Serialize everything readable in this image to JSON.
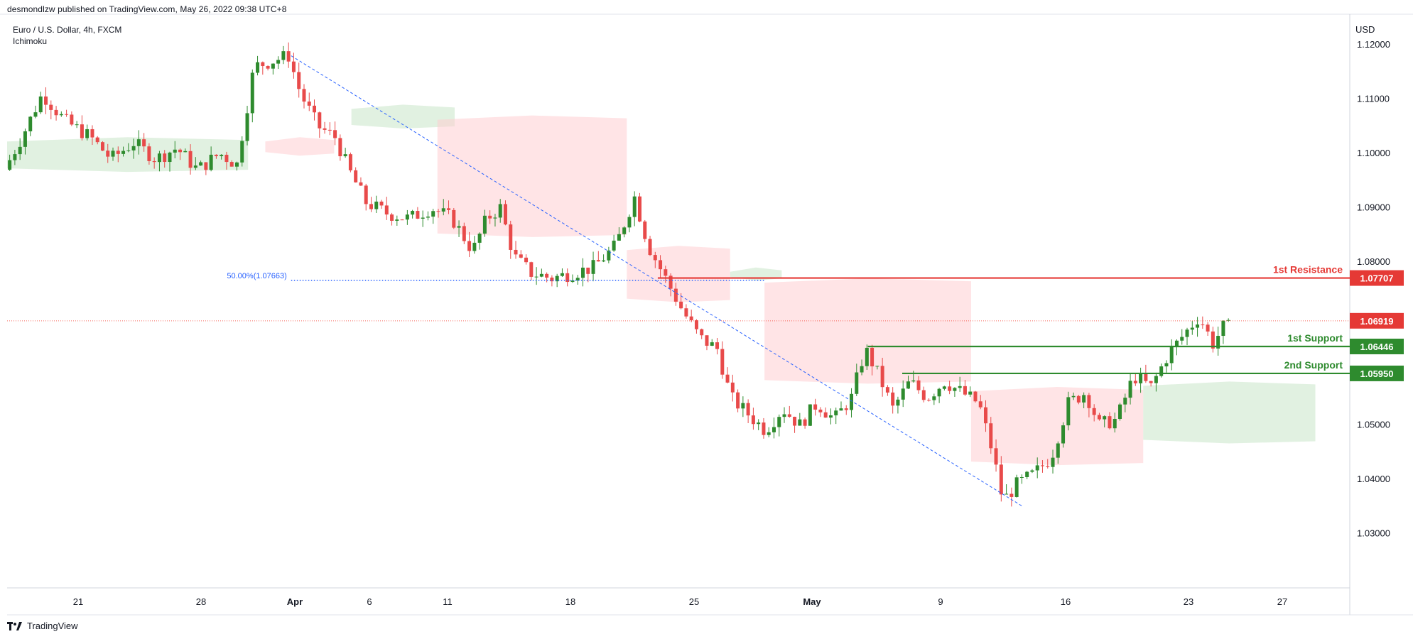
{
  "header": {
    "published_by": "desmondlzw published on TradingView.com, May 26, 2022 09:38 UTC+8"
  },
  "legend": {
    "symbol": "Euro / U.S. Dollar, 4h, FXCM",
    "indicator": "Ichimoku"
  },
  "colors": {
    "up": "#26a69a",
    "up_candle": "#2e8b2e",
    "down": "#e84a4a",
    "resistance": "#e53935",
    "support": "#2e8b2e",
    "fib": "#2962ff",
    "cloud_bull": "#c8e6c9",
    "cloud_bear": "#ffcdd2",
    "price_line": "#f44336"
  },
  "footer": {
    "brand": "TradingView"
  },
  "chart_data": {
    "type": "candlestick",
    "currency": "USD",
    "ylim": [
      1.02,
      1.125
    ],
    "y_ticks": [
      {
        "value": 1.12,
        "label": "1.12000"
      },
      {
        "value": 1.11,
        "label": "1.11000"
      },
      {
        "value": 1.1,
        "label": "1.10000"
      },
      {
        "value": 1.09,
        "label": "1.09000"
      },
      {
        "value": 1.08,
        "label": "1.08000"
      },
      {
        "value": 1.05,
        "label": "1.05000"
      },
      {
        "value": 1.04,
        "label": "1.04000"
      },
      {
        "value": 1.03,
        "label": "1.03000"
      }
    ],
    "x_ticks": [
      "21",
      "28",
      "Apr",
      "6",
      "11",
      "18",
      "25",
      "May",
      "9",
      "16",
      "23",
      "27"
    ],
    "key_levels": [
      {
        "name": "1st Resistance",
        "value": 1.07707,
        "label": "1.07707",
        "kind": "resistance"
      },
      {
        "name": "1st Support",
        "value": 1.06446,
        "label": "1.06446",
        "kind": "support"
      },
      {
        "name": "2nd Support",
        "value": 1.0595,
        "label": "1.05950",
        "kind": "support"
      }
    ],
    "current_price": {
      "value": 1.06919,
      "label": "1.06919"
    },
    "fib_label": "50.00%(1.07663)",
    "fib_value": 1.07663,
    "price_path": [
      [
        0,
        1.097
      ],
      [
        10,
        1.103
      ],
      [
        22,
        1.111
      ],
      [
        35,
        1.106
      ],
      [
        50,
        1.103
      ],
      [
        62,
        1.099
      ],
      [
        75,
        1.102
      ],
      [
        88,
        1.099
      ],
      [
        100,
        1.101
      ],
      [
        112,
        1.097
      ],
      [
        125,
        1.1
      ],
      [
        135,
        1.098
      ],
      [
        145,
        1.116
      ],
      [
        155,
        1.117
      ],
      [
        165,
        1.118
      ],
      [
        172,
        1.111
      ],
      [
        182,
        1.105
      ],
      [
        192,
        1.103
      ],
      [
        200,
        1.097
      ],
      [
        210,
        1.091
      ],
      [
        222,
        1.089
      ],
      [
        235,
        1.088
      ],
      [
        248,
        1.09
      ],
      [
        260,
        1.088
      ],
      [
        272,
        1.082
      ],
      [
        280,
        1.088
      ],
      [
        288,
        1.09
      ],
      [
        296,
        1.081
      ],
      [
        306,
        1.078
      ],
      [
        318,
        1.077
      ],
      [
        330,
        1.078
      ],
      [
        342,
        1.079
      ],
      [
        355,
        1.083
      ],
      [
        366,
        1.092
      ],
      [
        374,
        1.083
      ],
      [
        384,
        1.077
      ],
      [
        394,
        1.071
      ],
      [
        404,
        1.066
      ],
      [
        414,
        1.064
      ],
      [
        422,
        1.055
      ],
      [
        432,
        1.052
      ],
      [
        442,
        1.049
      ],
      [
        452,
        1.053
      ],
      [
        462,
        1.05
      ],
      [
        472,
        1.054
      ],
      [
        482,
        1.051
      ],
      [
        492,
        1.055
      ],
      [
        500,
        1.064
      ],
      [
        508,
        1.059
      ],
      [
        516,
        1.053
      ],
      [
        526,
        1.058
      ],
      [
        536,
        1.055
      ],
      [
        546,
        1.058
      ],
      [
        556,
        1.056
      ],
      [
        566,
        1.054
      ],
      [
        574,
        1.045
      ],
      [
        580,
        1.036
      ],
      [
        588,
        1.039
      ],
      [
        598,
        1.041
      ],
      [
        608,
        1.044
      ],
      [
        618,
        1.054
      ],
      [
        628,
        1.056
      ],
      [
        636,
        1.05
      ],
      [
        646,
        1.051
      ],
      [
        656,
        1.059
      ],
      [
        666,
        1.057
      ],
      [
        676,
        1.063
      ],
      [
        686,
        1.067
      ],
      [
        694,
        1.07
      ],
      [
        702,
        1.065
      ],
      [
        708,
        1.068
      ]
    ],
    "cloud": [
      {
        "from": 0,
        "to": 140,
        "top": 1.103,
        "bottom": 1.097,
        "kind": "bull"
      },
      {
        "from": 150,
        "to": 190,
        "top": 1.103,
        "bottom": 1.1,
        "kind": "bear"
      },
      {
        "from": 200,
        "to": 260,
        "top": 1.109,
        "bottom": 1.105,
        "kind": "bull"
      },
      {
        "from": 250,
        "to": 360,
        "top": 1.107,
        "bottom": 1.085,
        "kind": "bear"
      },
      {
        "from": 360,
        "to": 420,
        "top": 1.083,
        "bottom": 1.073,
        "kind": "bear"
      },
      {
        "from": 420,
        "to": 450,
        "top": 1.079,
        "bottom": 1.077,
        "kind": "bull"
      },
      {
        "from": 440,
        "to": 560,
        "top": 1.077,
        "bottom": 1.058,
        "kind": "bear"
      },
      {
        "from": 560,
        "to": 660,
        "top": 1.057,
        "bottom": 1.043,
        "kind": "bear"
      },
      {
        "from": 660,
        "to": 760,
        "top": 1.058,
        "bottom": 1.047,
        "kind": "bull"
      }
    ],
    "trendline": {
      "from": [
        165,
        1.118
      ],
      "to": [
        590,
        1.035
      ]
    },
    "fib_line": {
      "from": 165,
      "to": 440
    }
  }
}
